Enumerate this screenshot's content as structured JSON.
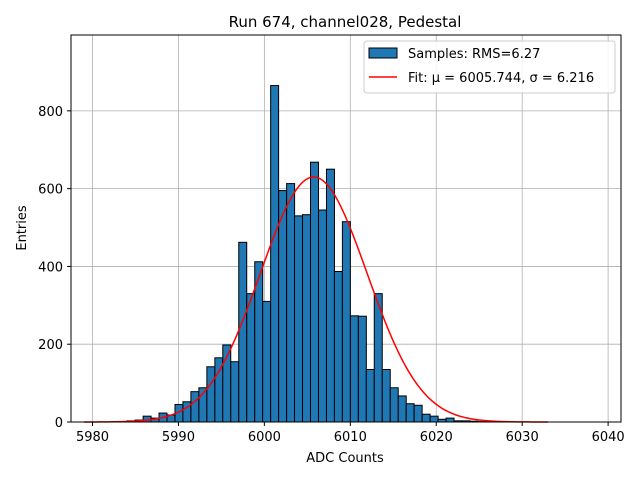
{
  "chart_data": {
    "type": "bar",
    "title": "Run 674, channel028, Pedestal",
    "xlabel": "ADC Counts",
    "ylabel": "Entries",
    "xlim": [
      5977.5,
      6041.5
    ],
    "ylim": [
      0,
      995
    ],
    "grid": true,
    "legend_placement": "top-right",
    "x_ticks": [
      5980,
      5990,
      6000,
      6010,
      6020,
      6030,
      6040
    ],
    "y_ticks": [
      0,
      200,
      400,
      600,
      800
    ],
    "bar_color": "#1f77b4",
    "fit_color": "#ff0000",
    "histogram": {
      "name": "Samples: RMS=6.27",
      "bin_width": 0.928,
      "bin_lefts": [
        5984.03,
        5984.96,
        5985.89,
        5986.81,
        5987.74,
        5988.67,
        5989.6,
        5990.52,
        5991.45,
        5992.38,
        5993.31,
        5994.24,
        5995.16,
        5996.09,
        5997.02,
        5997.95,
        5998.88,
        5999.8,
        6000.73,
        6001.66,
        6002.59,
        6003.51,
        6004.44,
        6005.37,
        6006.3,
        6007.23,
        6008.15,
        6009.08,
        6010.01,
        6010.94,
        6011.86,
        6012.79,
        6013.72,
        6014.65,
        6015.58,
        6016.5,
        6017.43,
        6018.36,
        6019.29,
        6020.21,
        6021.14,
        6022.07,
        6023.0,
        6023.93,
        6024.85
      ],
      "values": [
        3,
        5,
        15,
        10,
        23,
        18,
        45,
        52,
        78,
        88,
        142,
        165,
        198,
        155,
        462,
        330,
        412,
        310,
        865,
        595,
        613,
        530,
        533,
        668,
        545,
        650,
        387,
        515,
        273,
        272,
        135,
        330,
        135,
        88,
        67,
        47,
        43,
        20,
        15,
        7,
        10,
        3,
        3,
        2,
        1
      ]
    },
    "fit": {
      "name": "Fit: μ = 6005.744, σ = 6.216",
      "mu": 6005.744,
      "sigma": 6.216,
      "amplitude": 630,
      "x_range": [
        5979.0,
        6033.0
      ]
    }
  }
}
